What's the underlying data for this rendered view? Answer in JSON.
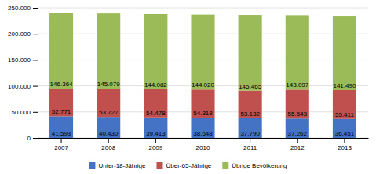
{
  "chart_data": {
    "type": "bar",
    "stacked": true,
    "categories": [
      "2007",
      "2008",
      "2009",
      "2010",
      "2011",
      "2012",
      "2013"
    ],
    "series": [
      {
        "name": "Unter-18-Jährige",
        "color": "#4472C4",
        "values": [
          41593,
          40430,
          39413,
          38648,
          37790,
          37262,
          36451
        ],
        "value_labels": [
          "41.593",
          "40.430",
          "39.413",
          "38.648",
          "37.790",
          "37.262",
          "36.451"
        ]
      },
      {
        "name": "Über-65-Jährige",
        "color": "#C0504D",
        "values": [
          52771,
          53727,
          54478,
          54318,
          53132,
          55543,
          55411
        ],
        "value_labels": [
          "52.771",
          "53.727",
          "54.478",
          "54.318",
          "53.132",
          "55.543",
          "55.411"
        ]
      },
      {
        "name": "Übrige Bevölkerung",
        "color": "#9BBB59",
        "values": [
          146364,
          145079,
          144082,
          144020,
          145465,
          143097,
          141490
        ],
        "value_labels": [
          "146.364",
          "145.079",
          "144.082",
          "144.020",
          "145.465",
          "143.097",
          "141.490"
        ]
      }
    ],
    "ylim": [
      0,
      250000
    ],
    "yticks": [
      0,
      {
        "value": 50000,
        "label": "50.000"
      },
      {
        "value": 100000,
        "label": "100.000"
      },
      {
        "value": 150000,
        "label": "150.000"
      },
      {
        "value": 200000,
        "label": "200.000"
      },
      {
        "value": 250000,
        "label": "250.000"
      }
    ],
    "grid": true,
    "data_labels": true,
    "legend": "bottom"
  }
}
